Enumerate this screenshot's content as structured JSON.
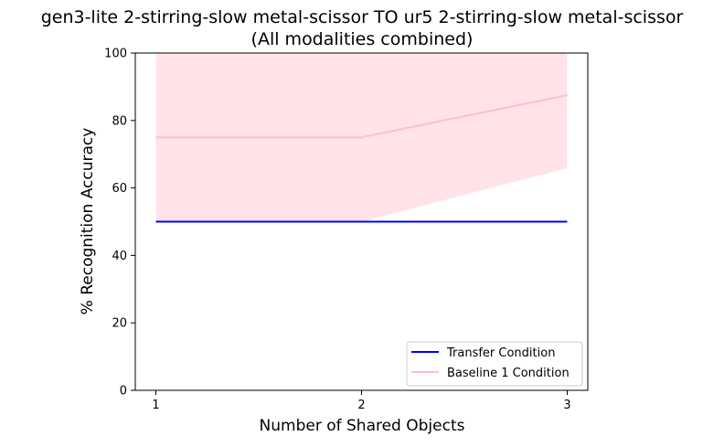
{
  "chart_data": {
    "type": "line",
    "title_line1": "gen3-lite 2-stirring-slow metal-scissor TO ur5 2-stirring-slow metal-scissor",
    "title_line2": "(All modalities combined)",
    "xlabel": "Number of Shared Objects",
    "ylabel": "% Recognition Accuracy",
    "x": [
      1,
      2,
      3
    ],
    "xlim": [
      0.9,
      3.1
    ],
    "ylim": [
      0,
      100
    ],
    "x_ticks": [
      1,
      2,
      3
    ],
    "y_ticks": [
      0,
      20,
      40,
      60,
      80,
      100
    ],
    "grid": false,
    "legend_position": "lower-right",
    "series": [
      {
        "name": "Transfer Condition",
        "values": [
          50,
          50,
          50
        ],
        "color": "#0000ff"
      },
      {
        "name": "Baseline 1 Condition",
        "values": [
          75,
          75,
          87.5
        ],
        "band_lower": [
          50,
          50,
          65.9
        ],
        "band_upper": [
          100,
          100,
          100
        ],
        "color": "#ffc0cb",
        "band_color": "#ffc0cb"
      }
    ]
  }
}
